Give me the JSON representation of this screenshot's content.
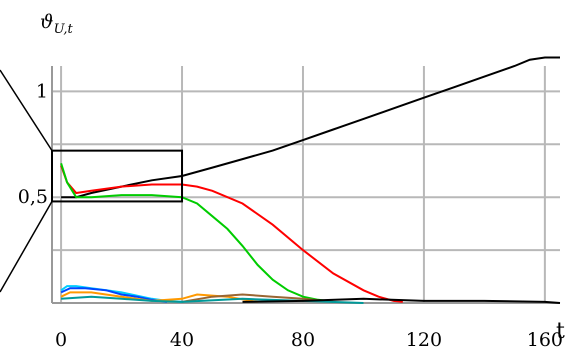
{
  "chart_data": {
    "type": "line",
    "ylabel_symbol": "ϑ",
    "ylabel_subscript": "U,t",
    "xlabel": "t",
    "xlim": [
      -3,
      165
    ],
    "ylim": [
      0,
      1.12
    ],
    "x_ticks": [
      0,
      40,
      80,
      120,
      160
    ],
    "x_tick_labels": [
      "0",
      "40",
      "80",
      "120",
      "160"
    ],
    "y_ticks": [
      0.5,
      1
    ],
    "y_tick_labels": [
      "0,5",
      "1"
    ],
    "grid": true,
    "zoom_box": {
      "x": [
        -3,
        40
      ],
      "y": [
        0.48,
        0.72
      ]
    },
    "series": [
      {
        "color": "#000000",
        "x": [
          0,
          5,
          10,
          20,
          30,
          40,
          50,
          60,
          70,
          80,
          90,
          100,
          110,
          120,
          130,
          140,
          150,
          155,
          160,
          165
        ],
        "y": [
          0.5,
          0.5,
          0.52,
          0.55,
          0.58,
          0.6,
          0.64,
          0.68,
          0.72,
          0.77,
          0.82,
          0.87,
          0.92,
          0.97,
          1.02,
          1.07,
          1.12,
          1.15,
          1.16,
          1.16
        ]
      },
      {
        "color": "#ff0000",
        "x": [
          0,
          2,
          5,
          10,
          20,
          30,
          40,
          45,
          50,
          60,
          70,
          80,
          90,
          100,
          105,
          110,
          113
        ],
        "y": [
          0.65,
          0.57,
          0.52,
          0.53,
          0.55,
          0.56,
          0.56,
          0.55,
          0.53,
          0.47,
          0.37,
          0.25,
          0.14,
          0.06,
          0.03,
          0.01,
          0.005
        ]
      },
      {
        "color": "#00cc00",
        "x": [
          0,
          2,
          5,
          10,
          20,
          30,
          40,
          45,
          50,
          55,
          60,
          65,
          70,
          75,
          80,
          85,
          88
        ],
        "y": [
          0.66,
          0.57,
          0.5,
          0.5,
          0.51,
          0.51,
          0.5,
          0.47,
          0.41,
          0.35,
          0.27,
          0.18,
          0.11,
          0.06,
          0.03,
          0.015,
          0.01
        ]
      },
      {
        "color": "#00ccff",
        "x": [
          0,
          2,
          5,
          10,
          15,
          20,
          25,
          30,
          35,
          40
        ],
        "y": [
          0.06,
          0.08,
          0.08,
          0.07,
          0.06,
          0.05,
          0.035,
          0.02,
          0.01,
          0.005
        ]
      },
      {
        "color": "#0044ff",
        "x": [
          0,
          3,
          8,
          15,
          20,
          25,
          30,
          35
        ],
        "y": [
          0.05,
          0.07,
          0.07,
          0.06,
          0.04,
          0.03,
          0.015,
          0.005
        ]
      },
      {
        "color": "#ff9900",
        "x": [
          0,
          3,
          10,
          20,
          30,
          40,
          45,
          55,
          65
        ],
        "y": [
          0.03,
          0.05,
          0.05,
          0.03,
          0.01,
          0.02,
          0.04,
          0.03,
          0.005
        ]
      },
      {
        "color": "#996633",
        "x": [
          40,
          50,
          60,
          70,
          80,
          90
        ],
        "y": [
          0.005,
          0.03,
          0.04,
          0.03,
          0.02,
          0.005
        ]
      },
      {
        "color": "#009999",
        "x": [
          0,
          10,
          20,
          30,
          40,
          60,
          80,
          100
        ],
        "y": [
          0.02,
          0.03,
          0.02,
          0.01,
          0.005,
          0.02,
          0.01,
          0.0
        ]
      },
      {
        "color": "#000000",
        "x": [
          60,
          80,
          100,
          120,
          140,
          160,
          165
        ],
        "y": [
          0.005,
          0.01,
          0.02,
          0.01,
          0.01,
          0.005,
          0.0
        ]
      }
    ]
  }
}
